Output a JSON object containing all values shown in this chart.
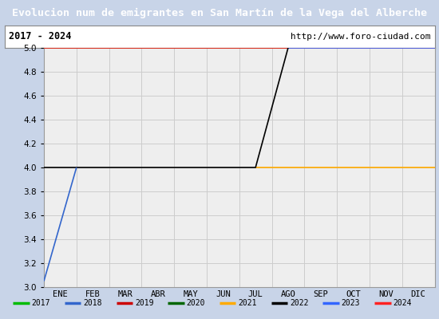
{
  "title": "Evolucion num de emigrantes en San Martín de la Vega del Alberche",
  "subtitle_left": "2017 - 2024",
  "subtitle_right": "http://www.foro-ciudad.com",
  "title_bg": "#4a7abf",
  "title_color": "white",
  "plot_bg": "#eeeeee",
  "outer_bg": "#c8d4e8",
  "ylim": [
    3.0,
    5.0
  ],
  "yticks": [
    3.0,
    3.2,
    3.4,
    3.6,
    3.8,
    4.0,
    4.2,
    4.4,
    4.6,
    4.8,
    5.0
  ],
  "months": [
    "ENE",
    "FEB",
    "MAR",
    "ABR",
    "MAY",
    "JUN",
    "JUL",
    "AGO",
    "SEP",
    "OCT",
    "NOV",
    "DIC"
  ],
  "series": {
    "2017": {
      "color": "#00bb00",
      "x": [
        0,
        12
      ],
      "y": [
        5.0,
        5.0
      ]
    },
    "2018": {
      "color": "#3366cc",
      "x": [
        0.0,
        1.0
      ],
      "y": [
        3.05,
        4.0
      ]
    },
    "2019": {
      "color": "#cc0000",
      "x": [
        0,
        12
      ],
      "y": [
        5.0,
        5.0
      ]
    },
    "2020": {
      "color": "#006600",
      "x": [
        0,
        12
      ],
      "y": [
        5.0,
        5.0
      ]
    },
    "2021": {
      "color": "#ffaa00",
      "x": [
        6.5,
        12
      ],
      "y": [
        4.0,
        4.0
      ]
    },
    "2022": {
      "color": "#000000",
      "x": [
        0,
        6.5,
        7.5
      ],
      "y": [
        4.0,
        4.0,
        5.0
      ]
    },
    "2023": {
      "color": "#3366ff",
      "x": [
        7.5,
        12
      ],
      "y": [
        5.0,
        5.0
      ]
    },
    "2024": {
      "color": "#ff2222",
      "x": [
        0,
        12
      ],
      "y": [
        5.0,
        5.0
      ]
    }
  },
  "draw_order": [
    "2017",
    "2019",
    "2020",
    "2024",
    "2023",
    "2021",
    "2022",
    "2018"
  ],
  "legend_order": [
    "2017",
    "2018",
    "2019",
    "2020",
    "2021",
    "2022",
    "2023",
    "2024"
  ],
  "legend_colors": {
    "2017": "#00bb00",
    "2018": "#3366cc",
    "2019": "#cc0000",
    "2020": "#006600",
    "2021": "#ffaa00",
    "2022": "#000000",
    "2023": "#3366ff",
    "2024": "#ff2222"
  }
}
